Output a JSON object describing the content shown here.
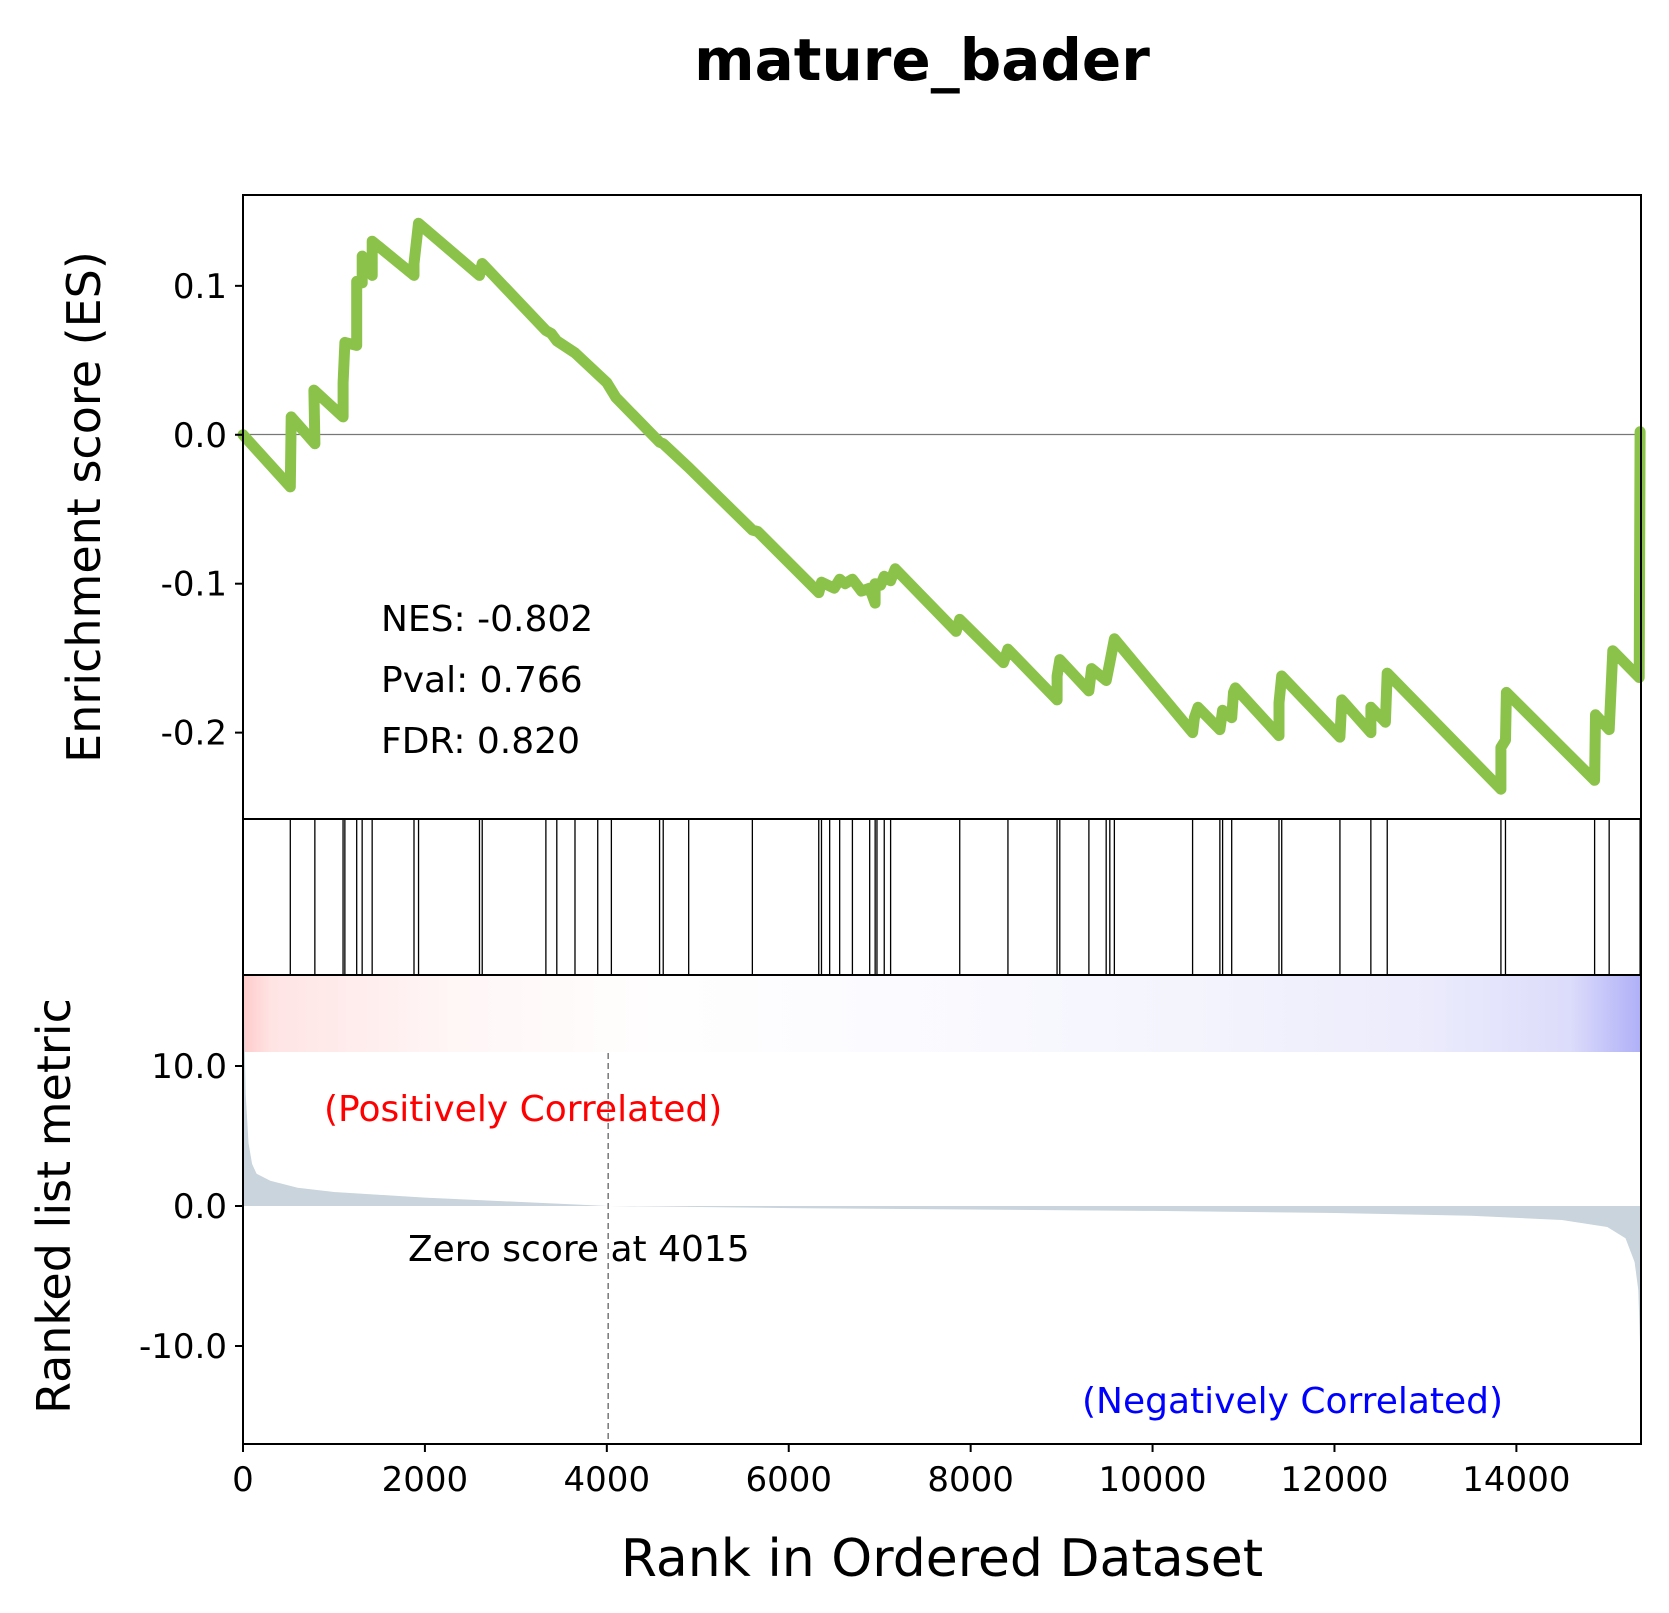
{
  "chart_data": {
    "type": "line",
    "title": "mature_bader",
    "xlabel": "Rank in Ordered Dataset",
    "xlim": [
      0,
      15370
    ],
    "x_ticks": [
      "0",
      "2000",
      "4000",
      "6000",
      "8000",
      "10000",
      "12000",
      "14000"
    ],
    "es_panel": {
      "ylabel": "Enrichment score (ES)",
      "ylim": [
        -0.258,
        0.161
      ],
      "y_ticks": [
        "0.1",
        "0.0",
        "-0.1",
        "-0.2"
      ],
      "line_color": "#8bc34a",
      "zero_line": true,
      "stats": {
        "nes": "NES: -0.802",
        "pval": "Pval: 0.766",
        "fdr": "FDR: 0.820"
      },
      "points": [
        [
          0,
          0.0
        ],
        [
          520,
          -0.035
        ],
        [
          530,
          0.012
        ],
        [
          790,
          -0.006
        ],
        [
          780,
          0.03
        ],
        [
          1100,
          0.012
        ],
        [
          1100,
          0.035
        ],
        [
          1120,
          0.062
        ],
        [
          1250,
          0.06
        ],
        [
          1250,
          0.103
        ],
        [
          1310,
          0.102
        ],
        [
          1310,
          0.12
        ],
        [
          1420,
          0.107
        ],
        [
          1420,
          0.13
        ],
        [
          1880,
          0.107
        ],
        [
          1880,
          0.115
        ],
        [
          1930,
          0.142
        ],
        [
          2600,
          0.107
        ],
        [
          2630,
          0.115
        ],
        [
          3330,
          0.07
        ],
        [
          3390,
          0.068
        ],
        [
          3450,
          0.063
        ],
        [
          3650,
          0.055
        ],
        [
          4000,
          0.035
        ],
        [
          4100,
          0.025
        ],
        [
          4580,
          -0.005
        ],
        [
          4620,
          -0.006
        ],
        [
          4900,
          -0.022
        ],
        [
          5600,
          -0.064
        ],
        [
          5660,
          -0.065
        ],
        [
          6330,
          -0.106
        ],
        [
          6360,
          -0.099
        ],
        [
          6500,
          -0.103
        ],
        [
          6560,
          -0.097
        ],
        [
          6620,
          -0.1
        ],
        [
          6700,
          -0.097
        ],
        [
          6800,
          -0.105
        ],
        [
          6890,
          -0.103
        ],
        [
          6950,
          -0.113
        ],
        [
          6950,
          -0.1
        ],
        [
          7010,
          -0.101
        ],
        [
          7050,
          -0.095
        ],
        [
          7120,
          -0.098
        ],
        [
          7170,
          -0.09
        ],
        [
          7840,
          -0.132
        ],
        [
          7880,
          -0.124
        ],
        [
          8360,
          -0.153
        ],
        [
          8410,
          -0.144
        ],
        [
          8950,
          -0.178
        ],
        [
          8950,
          -0.162
        ],
        [
          8980,
          -0.151
        ],
        [
          9300,
          -0.172
        ],
        [
          9330,
          -0.157
        ],
        [
          9490,
          -0.165
        ],
        [
          9530,
          -0.153
        ],
        [
          9580,
          -0.137
        ],
        [
          10440,
          -0.2
        ],
        [
          10460,
          -0.19
        ],
        [
          10500,
          -0.183
        ],
        [
          10740,
          -0.198
        ],
        [
          10770,
          -0.185
        ],
        [
          10870,
          -0.19
        ],
        [
          10890,
          -0.173
        ],
        [
          10910,
          -0.17
        ],
        [
          11390,
          -0.202
        ],
        [
          11390,
          -0.18
        ],
        [
          11420,
          -0.162
        ],
        [
          12060,
          -0.203
        ],
        [
          12080,
          -0.178
        ],
        [
          12400,
          -0.2
        ],
        [
          12400,
          -0.183
        ],
        [
          12560,
          -0.193
        ],
        [
          12580,
          -0.16
        ],
        [
          13830,
          -0.238
        ],
        [
          13830,
          -0.21
        ],
        [
          13880,
          -0.205
        ],
        [
          13890,
          -0.173
        ],
        [
          14860,
          -0.232
        ],
        [
          14870,
          -0.188
        ],
        [
          15020,
          -0.198
        ],
        [
          15060,
          -0.145
        ],
        [
          15350,
          -0.163
        ],
        [
          15360,
          0.002
        ]
      ]
    },
    "hits": [
      520,
      790,
      1100,
      1120,
      1250,
      1310,
      1420,
      1880,
      1930,
      2600,
      2630,
      3330,
      3450,
      3650,
      3900,
      4050,
      4580,
      4620,
      4900,
      5600,
      6330,
      6360,
      6450,
      6560,
      6700,
      6890,
      6950,
      6970,
      7050,
      7120,
      7880,
      8410,
      8950,
      8980,
      9300,
      9490,
      9530,
      9580,
      10440,
      10740,
      10770,
      10870,
      11390,
      11420,
      12060,
      12400,
      12580,
      13830,
      13880,
      14860,
      15020,
      15360
    ],
    "rank_panel": {
      "ylabel": "Ranked list metric",
      "ylim": [
        -17.0,
        16.5
      ],
      "y_ticks": [
        "10.0",
        "0.0",
        "-10.0"
      ],
      "fill_color": "#c9d4dc",
      "positive_label": "(Positively Correlated)",
      "negative_label": "(Negatively Correlated)",
      "zero_cross": 4015,
      "zero_cross_label": "Zero score at 4015",
      "curve": [
        [
          0,
          15.0
        ],
        [
          10,
          14.0
        ],
        [
          30,
          8.0
        ],
        [
          60,
          4.5
        ],
        [
          100,
          3.0
        ],
        [
          150,
          2.3
        ],
        [
          300,
          1.8
        ],
        [
          600,
          1.3
        ],
        [
          1000,
          1.0
        ],
        [
          2000,
          0.6
        ],
        [
          3000,
          0.3
        ],
        [
          4015,
          0.0
        ],
        [
          6000,
          -0.15
        ],
        [
          8000,
          -0.25
        ],
        [
          10000,
          -0.35
        ],
        [
          12000,
          -0.5
        ],
        [
          13500,
          -0.7
        ],
        [
          14500,
          -1.0
        ],
        [
          15000,
          -1.5
        ],
        [
          15200,
          -2.3
        ],
        [
          15300,
          -4.0
        ],
        [
          15340,
          -6.0
        ],
        [
          15360,
          -10.0
        ],
        [
          15370,
          -15.0
        ]
      ]
    },
    "heatmap_colors": [
      "#ff0000",
      "#ffffff",
      "#0000ff"
    ]
  }
}
